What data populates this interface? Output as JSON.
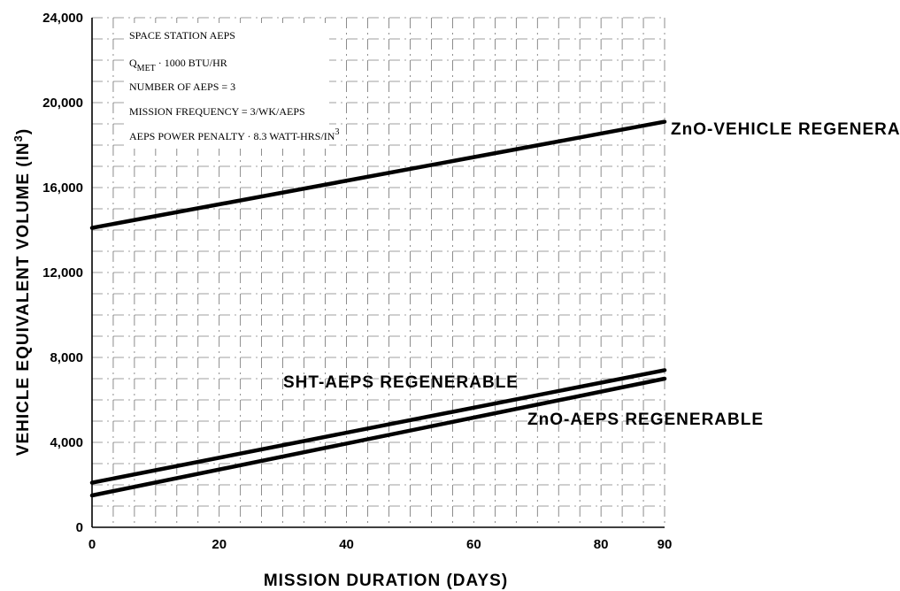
{
  "chart_data": {
    "type": "line",
    "xlabel": "MISSION DURATION (DAYS)",
    "ylabel": "VEHICLE EQUIVALENT VOLUME (IN",
    "ylabel_superscript": "3",
    "ylabel_suffix": ")",
    "xlim": [
      0,
      90
    ],
    "ylim": [
      0,
      24000
    ],
    "x_ticks": [
      {
        "value": 0,
        "label": "0"
      },
      {
        "value": 20,
        "label": "20"
      },
      {
        "value": 40,
        "label": "40"
      },
      {
        "value": 60,
        "label": "60"
      },
      {
        "value": 80,
        "label": "80"
      },
      {
        "value": 90,
        "label": "90"
      }
    ],
    "y_ticks": [
      {
        "value": 0,
        "label": "0"
      },
      {
        "value": 4000,
        "label": "4,000"
      },
      {
        "value": 8000,
        "label": "8,000"
      },
      {
        "value": 12000,
        "label": "12,000"
      },
      {
        "value": 16000,
        "label": "16,000"
      },
      {
        "value": 20000,
        "label": "20,000"
      },
      {
        "value": 24000,
        "label": "24,000"
      }
    ],
    "grid": true,
    "legend_position": "top-left",
    "legend_lines": [
      {
        "text": "SPACE STATION AEPS"
      },
      {
        "text": "Q",
        "subscript": "MET",
        "tail": "  ·  1000 BTU/HR"
      },
      {
        "text": "NUMBER OF AEPS  = 3"
      },
      {
        "text": "MISSION FREQUENCY  =  3/WK/AEPS"
      },
      {
        "text": "AEPS POWER PENALTY  ·  8.3 WATT-HRS/IN",
        "superscript": "3"
      }
    ],
    "series": [
      {
        "name": "ZnO-VEHICLE REGENERABLE",
        "x": [
          0,
          90
        ],
        "y": [
          14100,
          19100
        ]
      },
      {
        "name": "SHT-AEPS REGENERABLE",
        "x": [
          0,
          90
        ],
        "y": [
          2100,
          7400
        ]
      },
      {
        "name": "ZnO-AEPS REGENERABLE",
        "x": [
          0,
          90
        ],
        "y": [
          1500,
          7000
        ]
      }
    ]
  }
}
